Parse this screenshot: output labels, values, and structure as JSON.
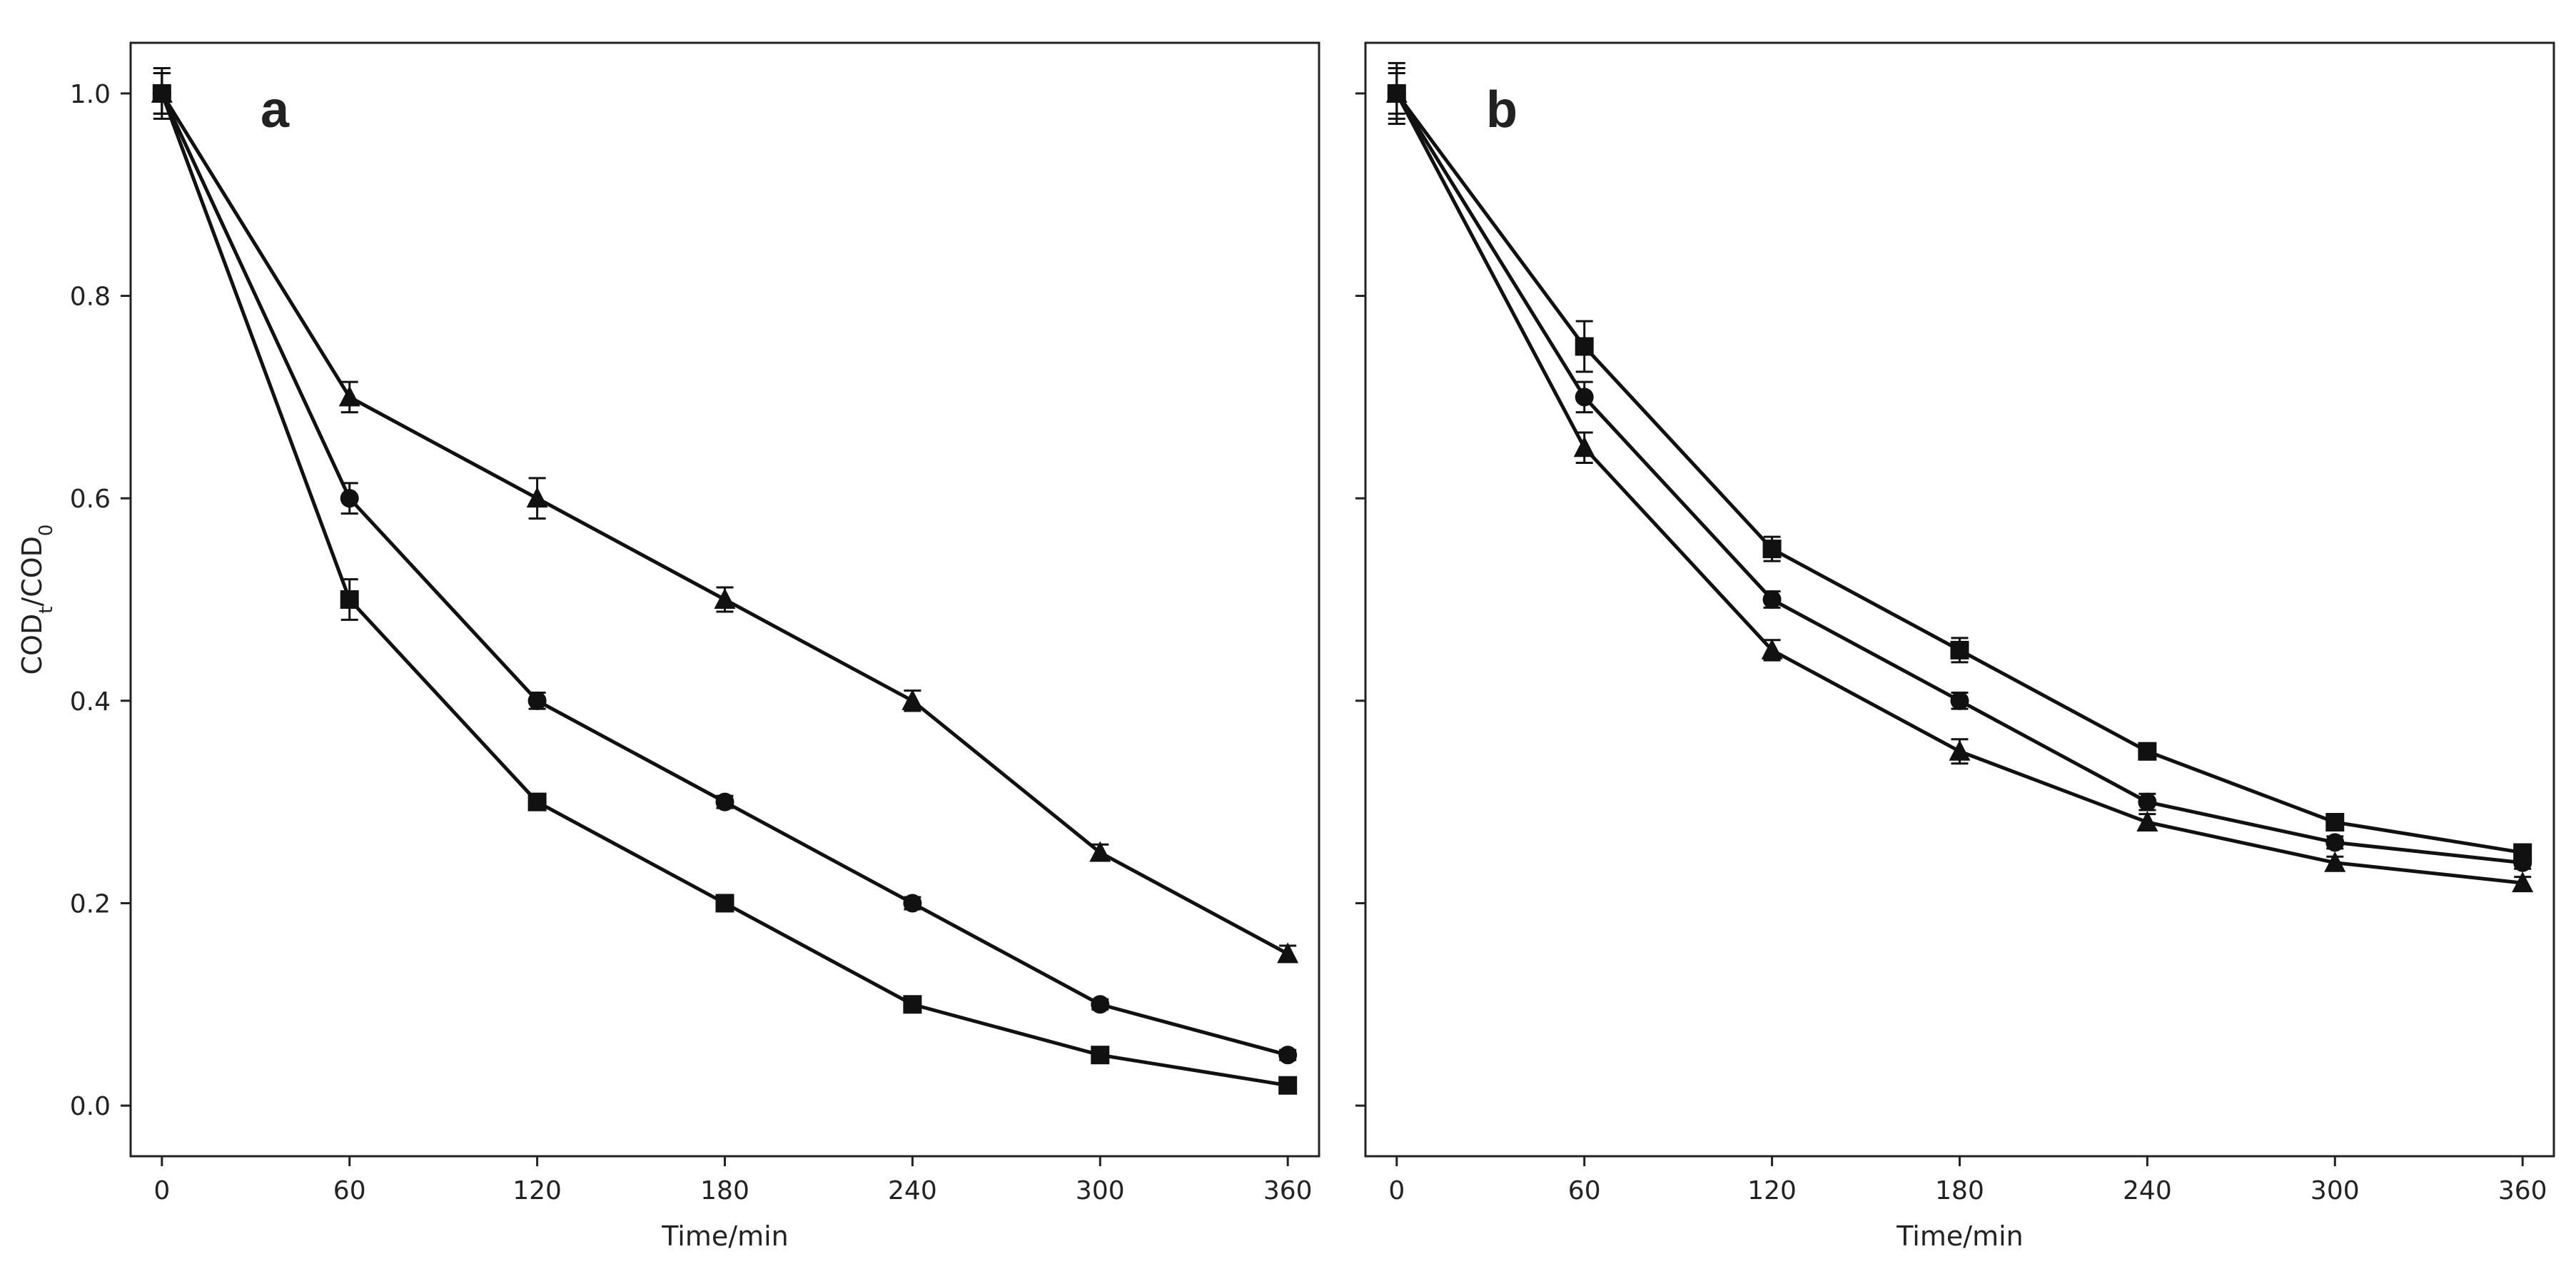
{
  "chart_data": [
    {
      "type": "line",
      "panel_label": "a",
      "xlabel": "Time/min",
      "ylabel": "COD",
      "ylabel_sub_t": "t",
      "ylabel_slash": "/COD",
      "ylabel_sub_0": "0",
      "x": [
        0,
        60,
        120,
        180,
        240,
        300,
        360
      ],
      "xticks": [
        "0",
        "60",
        "120",
        "180",
        "240",
        "300",
        "360"
      ],
      "yticks": [
        "0.0",
        "0.2",
        "0.4",
        "0.6",
        "0.8",
        "1.0"
      ],
      "xlim": [
        -10,
        370
      ],
      "ylim": [
        -0.05,
        1.05
      ],
      "grid": false,
      "series": [
        {
          "marker": "triangle",
          "values": [
            1.0,
            0.7,
            0.6,
            0.5,
            0.4,
            0.25,
            0.15
          ],
          "errors": [
            0.02,
            0.015,
            0.02,
            0.012,
            0.01,
            0.008,
            0.008
          ]
        },
        {
          "marker": "circle",
          "values": [
            1.0,
            0.6,
            0.4,
            0.3,
            0.2,
            0.1,
            0.05
          ],
          "errors": [
            0.02,
            0.015,
            0.008,
            0.006,
            0.006,
            0.005,
            0.005
          ]
        },
        {
          "marker": "square",
          "values": [
            1.0,
            0.5,
            0.3,
            0.2,
            0.1,
            0.05,
            0.02
          ],
          "errors": [
            0.025,
            0.02,
            0.008,
            0.006,
            0.006,
            0.005,
            0.004
          ]
        }
      ]
    },
    {
      "type": "line",
      "panel_label": "b",
      "xlabel": "Time/min",
      "x": [
        0,
        60,
        120,
        180,
        240,
        300,
        360
      ],
      "xticks": [
        "0",
        "60",
        "120",
        "180",
        "240",
        "300",
        "360"
      ],
      "ylim": [
        -0.05,
        1.05
      ],
      "xlim": [
        -10,
        370
      ],
      "grid": false,
      "series": [
        {
          "marker": "square",
          "values": [
            1.0,
            0.75,
            0.55,
            0.45,
            0.35,
            0.28,
            0.25
          ],
          "errors": [
            0.03,
            0.025,
            0.012,
            0.012,
            0.008,
            0.008,
            0.008
          ]
        },
        {
          "marker": "circle",
          "values": [
            1.0,
            0.7,
            0.5,
            0.4,
            0.3,
            0.26,
            0.24
          ],
          "errors": [
            0.025,
            0.015,
            0.008,
            0.008,
            0.008,
            0.006,
            0.006
          ]
        },
        {
          "marker": "triangle",
          "values": [
            1.0,
            0.65,
            0.45,
            0.35,
            0.28,
            0.24,
            0.22
          ],
          "errors": [
            0.02,
            0.015,
            0.01,
            0.012,
            0.008,
            0.006,
            0.006
          ]
        }
      ]
    }
  ]
}
